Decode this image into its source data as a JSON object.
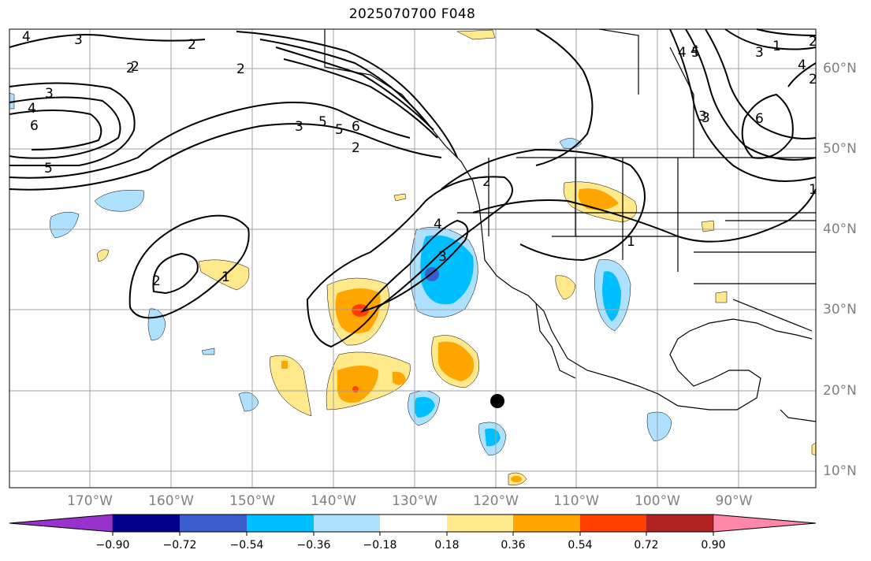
{
  "title": "2025070700 F048",
  "colors": {
    "land_outline": "#000000",
    "gridline": "#a0a0a0",
    "contour": "#000000",
    "positive_shades": [
      "#ffe98a",
      "#ffa500",
      "#ff4000",
      "#b22222",
      "#ff88aa"
    ],
    "negative_shades": [
      "#aee1ff",
      "#00bfff",
      "#3a5fcd",
      "#00008b",
      "#9932cc"
    ]
  },
  "axes": {
    "lon_labels": [
      "170°W",
      "160°W",
      "150°W",
      "140°W",
      "130°W",
      "120°W",
      "110°W",
      "100°W",
      "90°W"
    ],
    "lat_labels": [
      "60°N",
      "50°N",
      "40°N",
      "30°N",
      "20°N",
      "10°N"
    ]
  },
  "colorbar": {
    "ticks": [
      "−0.90",
      "−0.72",
      "−0.54",
      "−0.36",
      "−0.18",
      "0.18",
      "0.36",
      "0.54",
      "0.72",
      "0.90"
    ],
    "colors": [
      "#9932cc",
      "#00008b",
      "#3a5fcd",
      "#00bfff",
      "#aee1ff",
      "#ffffff",
      "#ffe98a",
      "#ffa500",
      "#ff4000",
      "#b22222",
      "#ff88aa"
    ]
  },
  "contour_labels": [
    "4",
    "3",
    "2",
    "2",
    "3",
    "4",
    "6",
    "5",
    "3",
    "2",
    "1",
    "2",
    "3",
    "4",
    "5",
    "6",
    "1",
    "2",
    "1",
    "2",
    "3",
    "4",
    "6",
    "5",
    "4",
    "3",
    "2",
    "1",
    "2",
    "4",
    "5",
    "3",
    "2"
  ],
  "marker": "storm-position-dot"
}
